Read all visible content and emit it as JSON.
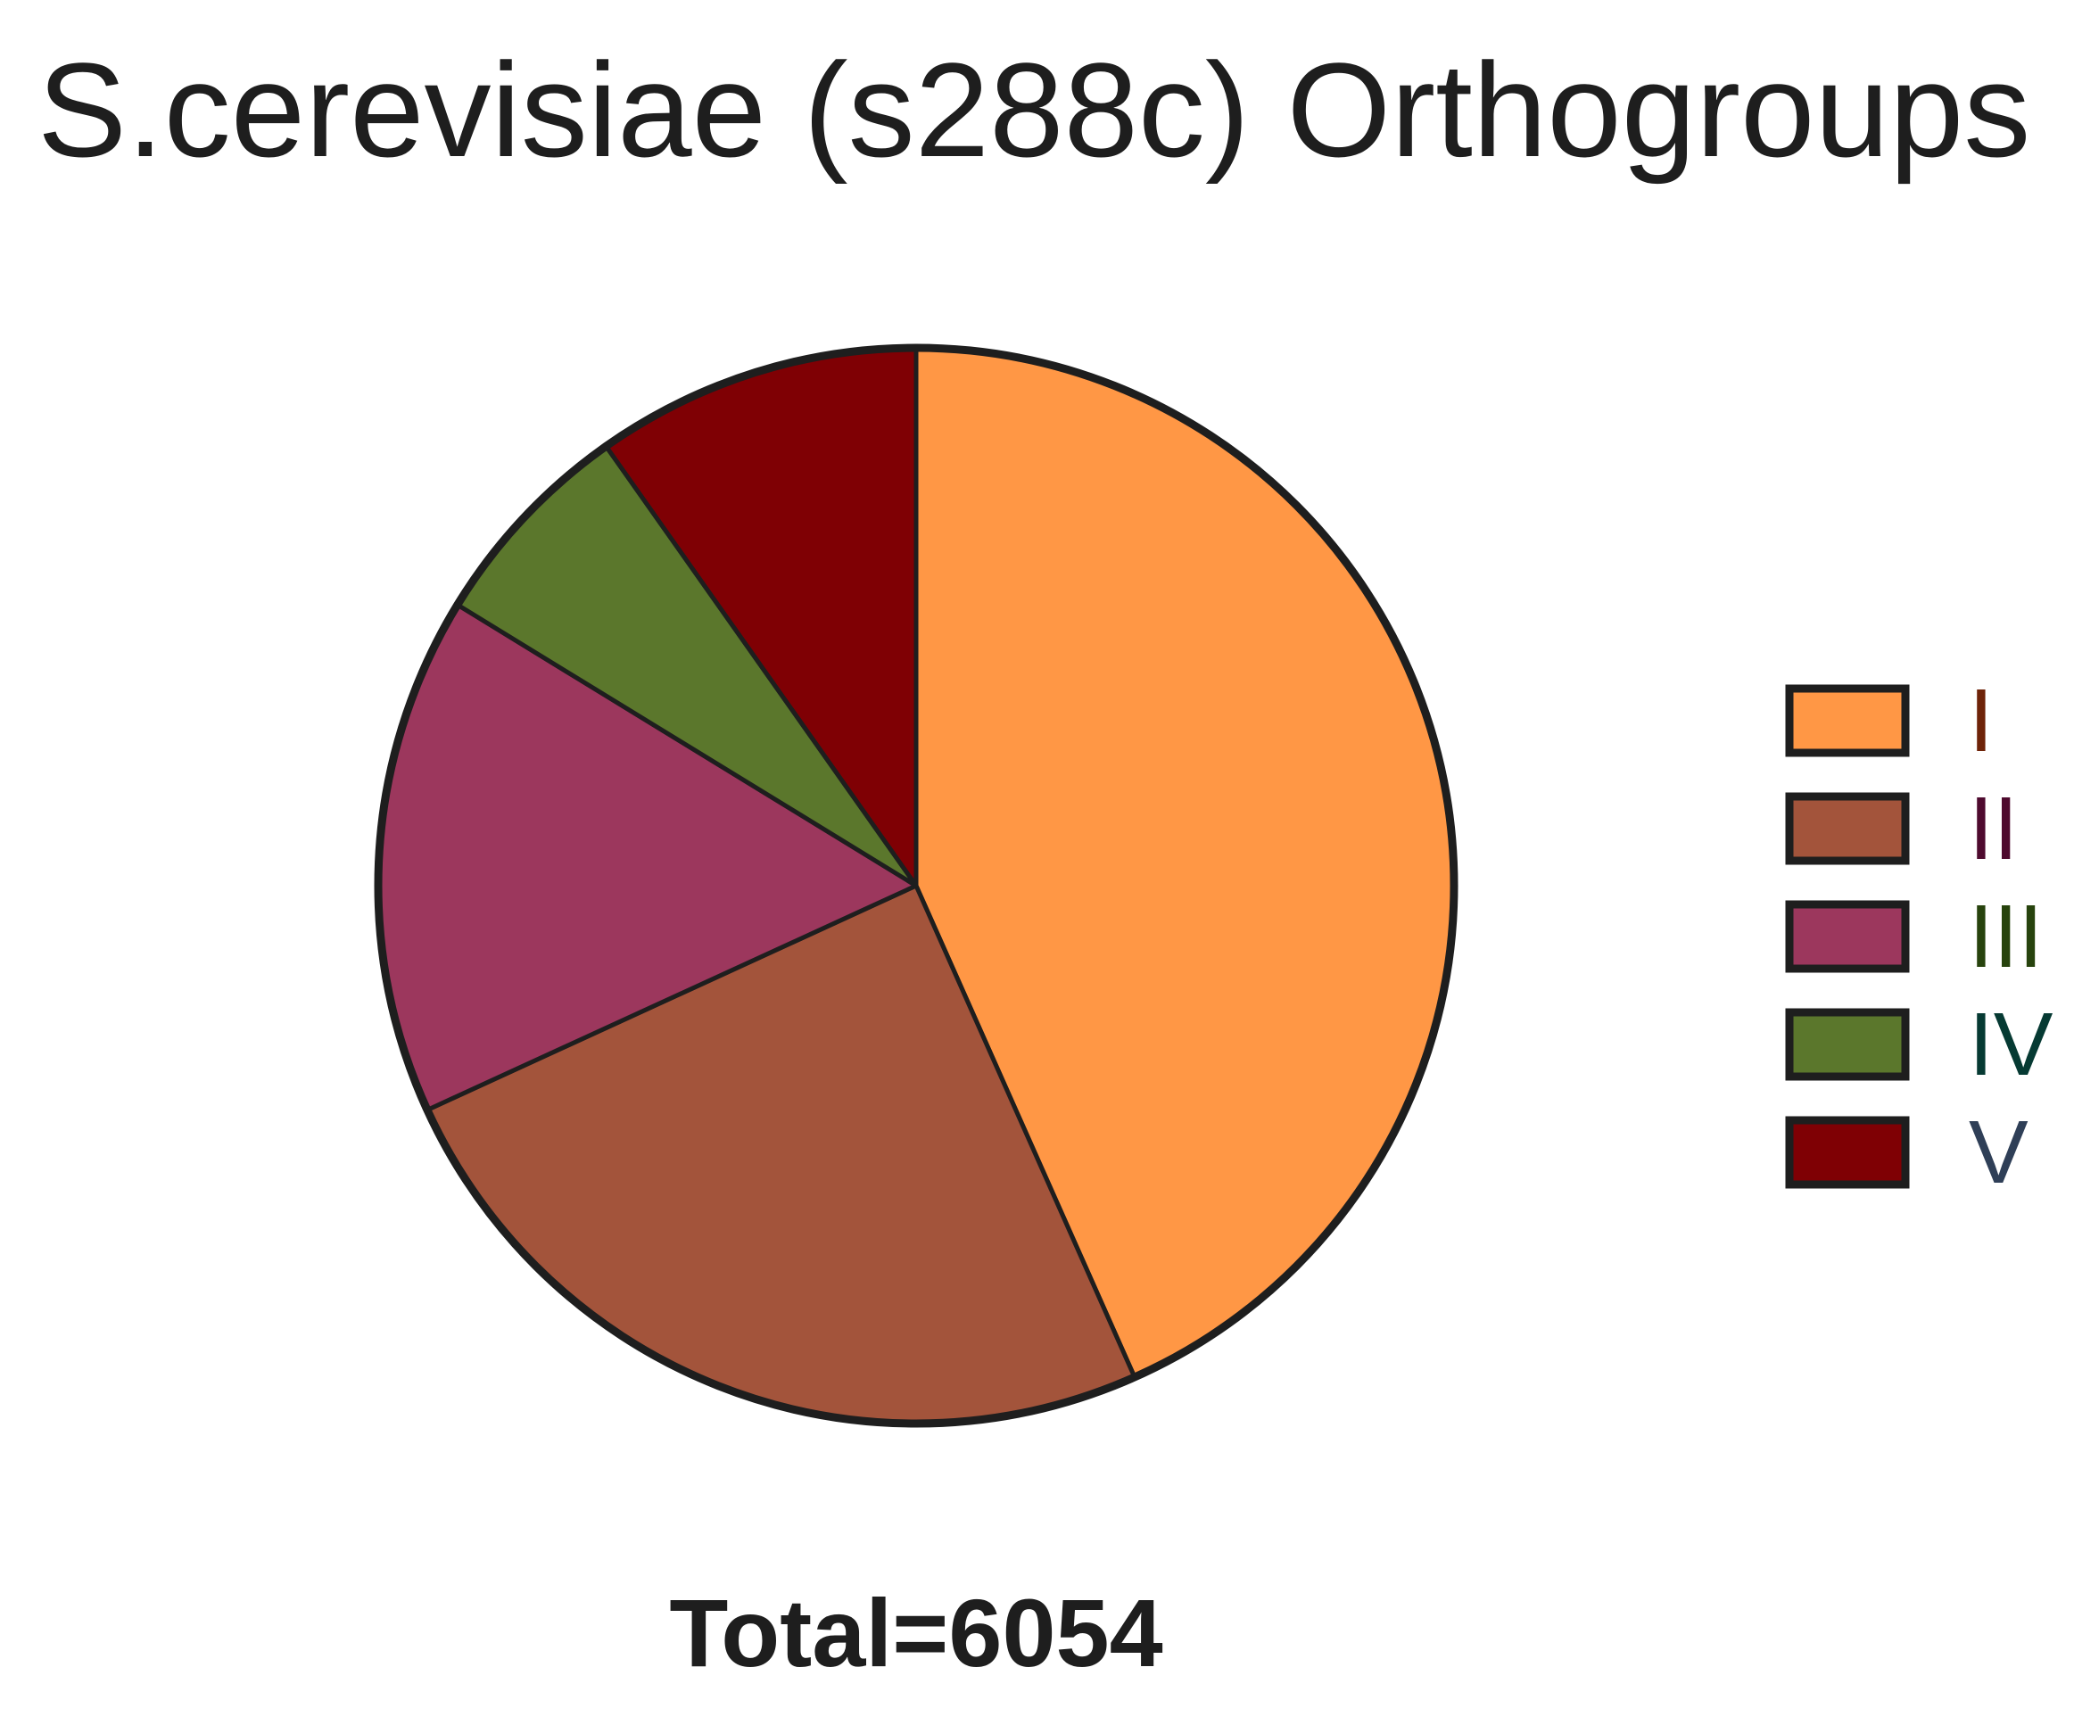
{
  "chart_data": {
    "type": "pie",
    "title": "S.cerevisiae (s288c) Orthogroups",
    "total_label": "Total=6054",
    "categories": [
      "I",
      "II",
      "III",
      "IV",
      "V"
    ],
    "values": [
      2624,
      1502,
      944,
      392,
      592
    ],
    "colors": [
      "#ff9745",
      "#a3543b",
      "#9c375d",
      "#5b772c",
      "#7f0004"
    ],
    "label_colors": [
      "#6e2308",
      "#4e0a2e",
      "#27430d",
      "#063a33",
      "#2f3f57"
    ],
    "edge_color": "#1e1e1e",
    "start_angle_deg": 90,
    "direction": "clockwise",
    "legend_position": "right"
  }
}
